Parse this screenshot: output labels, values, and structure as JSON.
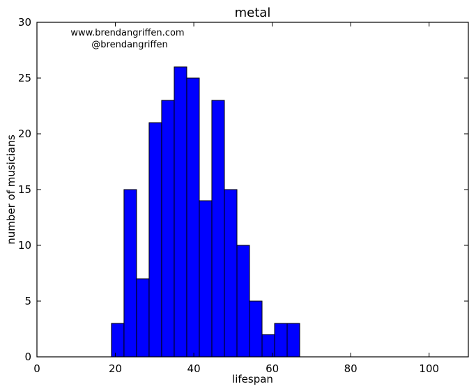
{
  "chart_data": {
    "type": "bar",
    "title": "metal",
    "xlabel": "lifespan",
    "ylabel": "number of musicians",
    "annotation": {
      "line1": "www.brendangriffen.com",
      "line2": "@brendangriffen"
    },
    "xlim": [
      0,
      110
    ],
    "ylim": [
      0,
      30
    ],
    "xticks": [
      0,
      20,
      40,
      60,
      80,
      100
    ],
    "yticks": [
      0,
      5,
      10,
      15,
      20,
      25,
      30
    ],
    "bin_edges": [
      19.0,
      22.2,
      25.4,
      28.6,
      31.8,
      35.0,
      38.2,
      41.4,
      44.6,
      47.8,
      51.0,
      54.2,
      57.4,
      60.6,
      63.8,
      67.0
    ],
    "values": [
      3,
      15,
      7,
      21,
      23,
      26,
      25,
      14,
      23,
      15,
      10,
      5,
      2,
      3,
      3
    ],
    "grid": false,
    "legend": "none",
    "colors": {
      "bar_fill": "#0000ff",
      "bar_edge": "#000000",
      "axes": "#000000",
      "background": "#ffffff"
    }
  }
}
